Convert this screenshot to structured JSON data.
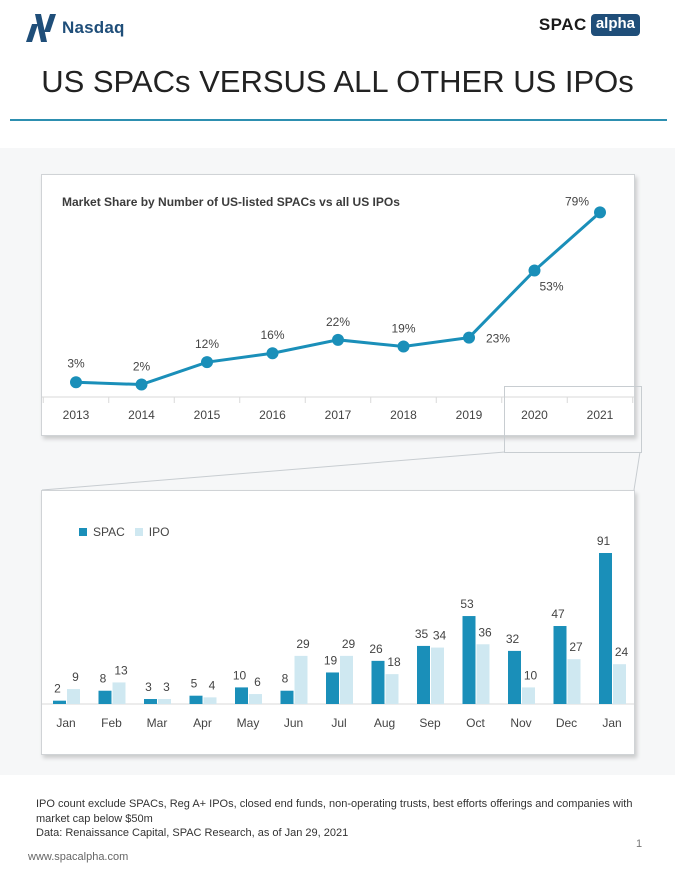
{
  "header": {
    "nasdaq_logo": "Nasdaq",
    "spac_logo_left": "SPAC",
    "spac_logo_right": "alpha",
    "title": "US SPACs VERSUS ALL OTHER US IPOs"
  },
  "colors": {
    "accent": "#1a8fb9",
    "ipo": "#cfe8f1",
    "rule": "#2d8fb0",
    "nasdaq": "#1f4e79"
  },
  "chart_data": [
    {
      "type": "line",
      "title": "Market Share by Number of US-listed SPACs vs all US IPOs",
      "categories": [
        "2013",
        "2014",
        "2015",
        "2016",
        "2017",
        "2018",
        "2019",
        "2020",
        "2021"
      ],
      "values": [
        3,
        2,
        12,
        16,
        22,
        19,
        23,
        53,
        79
      ],
      "labels": [
        "3%",
        "2%",
        "12%",
        "16%",
        "22%",
        "19%",
        "23%",
        "53%",
        "79%"
      ],
      "ylim": [
        0,
        85
      ],
      "xlabel": "",
      "ylabel": "",
      "grid": false
    },
    {
      "type": "bar",
      "title": "",
      "categories": [
        "Jan",
        "Feb",
        "Mar",
        "Apr",
        "May",
        "Jun",
        "Jul",
        "Aug",
        "Sep",
        "Oct",
        "Nov",
        "Dec",
        "Jan"
      ],
      "series": [
        {
          "name": "SPAC",
          "values": [
            2,
            8,
            3,
            5,
            10,
            8,
            19,
            26,
            35,
            53,
            32,
            47,
            91
          ]
        },
        {
          "name": "IPO",
          "values": [
            9,
            13,
            3,
            4,
            6,
            29,
            29,
            18,
            34,
            36,
            10,
            27,
            24
          ]
        }
      ],
      "ylim": [
        0,
        95
      ],
      "legend": "top-left",
      "xlabel": "",
      "ylabel": "",
      "grid": false
    }
  ],
  "footnote": {
    "line1": "IPO count exclude SPACs, Reg A+ IPOs, closed end funds, non-operating trusts, best efforts offerings and companies with market cap below $50m",
    "line2": "Data:   Renaissance Capital, SPAC Research, as of Jan 29, 2021"
  },
  "footer": {
    "website": "www.spacalpha.com",
    "page": "1"
  }
}
